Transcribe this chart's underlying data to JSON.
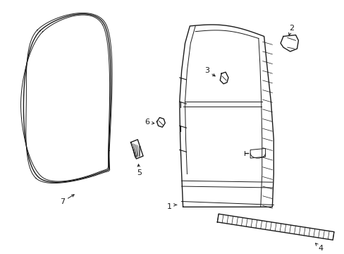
{
  "background_color": "#ffffff",
  "line_color": "#1a1a1a",
  "fig_width": 4.89,
  "fig_height": 3.6,
  "dpi": 100,
  "seal_color": "#333333",
  "part7_label": "7",
  "part5_label": "5",
  "part6_label": "6",
  "part3_label": "3",
  "part2_label": "2",
  "part1_label": "1",
  "part4_label": "4"
}
